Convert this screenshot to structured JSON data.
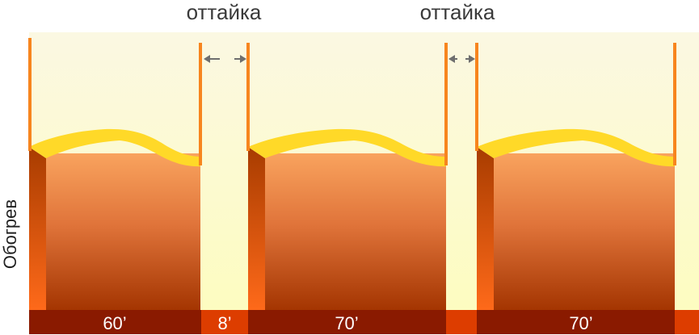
{
  "axis_label": "Обогрев",
  "top_labels": [
    "оттайка",
    "оттайка"
  ],
  "bar_labels": [
    "60’",
    "8’",
    "70’",
    "70’"
  ],
  "colors": {
    "background_top": "#fbf8e0",
    "background_bottom": "#fdfcc2",
    "post": "#f7851e",
    "body_top": "#f9a35e",
    "body_bottom": "#a33400",
    "side_top": "#a33a00",
    "side_bottom": "#ff6a1a",
    "cap": "#ffd928",
    "bar_heat": "#8a1a00",
    "bar_defrost": "#dd3d00",
    "arrow": "#6e6e6e"
  }
}
